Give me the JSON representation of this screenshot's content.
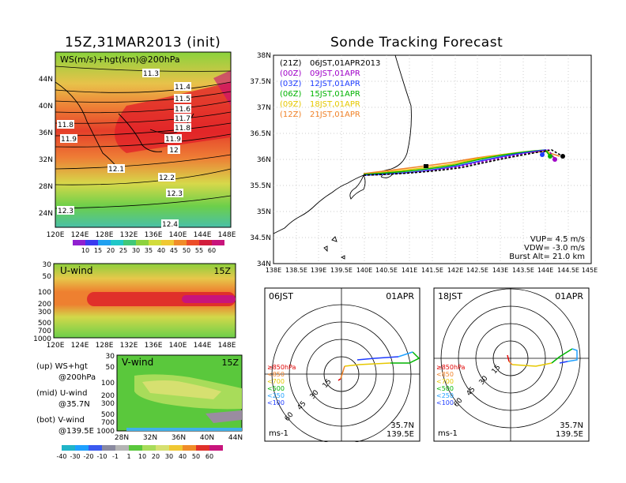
{
  "left_title": "15Z,31MAR2013 (init)",
  "right_title": "Sonde Tracking Forecast",
  "map_panel": {
    "label": "WS(m/s)+hgt(km)@200hPa",
    "lat_ticks": [
      "44N",
      "40N",
      "36N",
      "32N",
      "28N",
      "24N"
    ],
    "lon_ticks": [
      "120E",
      "124E",
      "128E",
      "132E",
      "136E",
      "140E",
      "144E",
      "148E"
    ],
    "contours": [
      "11.3",
      "11.4",
      "11.5",
      "11.6",
      "11.7",
      "11.8",
      "11.8",
      "11.9",
      "11.9",
      "12",
      "12.1",
      "12.2",
      "12.3",
      "12.3",
      "12.4"
    ],
    "colorbar": [
      "10",
      "15",
      "20",
      "25",
      "30",
      "35",
      "40",
      "45",
      "50",
      "55",
      "60"
    ]
  },
  "uwind_panel": {
    "label": "U-wind",
    "time": "15Z",
    "p_ticks": [
      "30",
      "50",
      "100",
      "200",
      "300",
      "500",
      "700",
      "1000"
    ],
    "lon_ticks": [
      "120E",
      "124E",
      "128E",
      "132E",
      "136E",
      "140E",
      "144E",
      "148E"
    ]
  },
  "vwind_panel": {
    "label": "V-wind",
    "time": "15Z",
    "p_ticks": [
      "30",
      "50",
      "100",
      "200",
      "300",
      "500",
      "700",
      "1000"
    ],
    "lat_ticks": [
      "28N",
      "32N",
      "36N",
      "40N",
      "44N"
    ],
    "colorbar": [
      "-40",
      "-30",
      "-20",
      "-10",
      "-1",
      "1",
      "10",
      "20",
      "30",
      "40",
      "50",
      "60"
    ]
  },
  "side_notes": {
    "up": "(up) WS+hgt",
    "up2": "@200hPa",
    "mid": "(mid) U-wind",
    "mid2": "@35.7N",
    "bot": "(bot) V-wind",
    "bot2": "@139.5E"
  },
  "track_panel": {
    "legend": [
      {
        "utc": "(21Z)",
        "jst": "06JST,01APR2013",
        "color": "#000000"
      },
      {
        "utc": "(00Z)",
        "jst": "09JST,01APR",
        "color": "#a000c8"
      },
      {
        "utc": "(03Z)",
        "jst": "12JST,01APR",
        "color": "#1e3cff"
      },
      {
        "utc": "(06Z)",
        "jst": "15JST,01APR",
        "color": "#00b400"
      },
      {
        "utc": "(09Z)",
        "jst": "18JST,01APR",
        "color": "#e6c800"
      },
      {
        "utc": "(12Z)",
        "jst": "21JST,01APR",
        "color": "#f08228"
      }
    ],
    "lat_ticks": [
      "38N",
      "37.5N",
      "37N",
      "36.5N",
      "36N",
      "35.5N",
      "35N",
      "34.5N",
      "34N"
    ],
    "lon_ticks": [
      "138E",
      "138.5E",
      "139E",
      "139.5E",
      "140E",
      "140.5E",
      "141E",
      "141.5E",
      "142E",
      "142.5E",
      "143E",
      "143.5E",
      "144E",
      "144.5E",
      "145E"
    ],
    "vup": "VUP= 4.5 m/s",
    "vdw": "VDW= -3.0 m/s",
    "burst": "Burst Alt= 21.0 km"
  },
  "hodo_left": {
    "time": "06JST",
    "date": "01APR",
    "rings": [
      "15",
      "30",
      "45",
      "60"
    ],
    "levels": [
      "≥850hPa",
      "<850",
      "<700",
      "<500",
      "<250",
      "<100"
    ],
    "lat": "35.7N",
    "lon": "139.5E",
    "unit": "ms-1"
  },
  "hodo_right": {
    "time": "18JST",
    "date": "01APR",
    "rings": [
      "15",
      "30",
      "45",
      "60"
    ],
    "levels": [
      "≥850hPa",
      "<850",
      "<700",
      "<500",
      "<250",
      "<100"
    ],
    "lat": "35.7N",
    "lon": "139.5E",
    "unit": "ms-1"
  },
  "colors": {
    "level_colors": [
      "#e00000",
      "#f08228",
      "#e6c800",
      "#00b400",
      "#1ea0ff",
      "#1e3cff"
    ]
  }
}
